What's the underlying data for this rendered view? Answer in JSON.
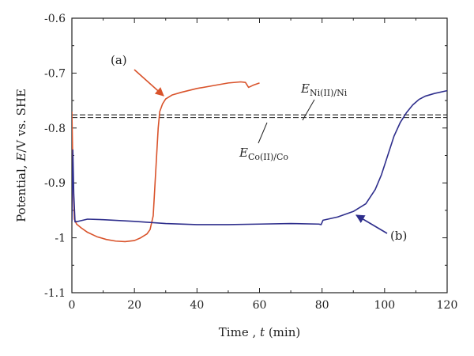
{
  "chart_data": {
    "type": "line",
    "xlabel": {
      "prefix": "Time , ",
      "var": "t",
      "suffix": " (min)"
    },
    "ylabel": {
      "prefix": "Potential, ",
      "var": "E",
      "suffix": "/V vs. SHE"
    },
    "xlim": [
      0,
      120
    ],
    "ylim": [
      -1.1,
      -0.6
    ],
    "x_ticks": [
      "0",
      "20",
      "40",
      "60",
      "80",
      "100",
      "120"
    ],
    "y_ticks": [
      "-0.6",
      "-0.7",
      "-0.8",
      "-0.9",
      "-1",
      "-1.1"
    ],
    "grid": false,
    "series": [
      {
        "name": "(a)",
        "color": "#d9532b",
        "points": [
          [
            0,
            -0.77
          ],
          [
            0.4,
            -0.9
          ],
          [
            0.8,
            -0.966
          ],
          [
            1.5,
            -0.975
          ],
          [
            3,
            -0.982
          ],
          [
            5,
            -0.99
          ],
          [
            8,
            -0.998
          ],
          [
            11,
            -1.003
          ],
          [
            14,
            -1.006
          ],
          [
            17,
            -1.007
          ],
          [
            20,
            -1.005
          ],
          [
            22,
            -1.0
          ],
          [
            24,
            -0.993
          ],
          [
            25,
            -0.985
          ],
          [
            26,
            -0.96
          ],
          [
            26.6,
            -0.9
          ],
          [
            27.1,
            -0.85
          ],
          [
            27.6,
            -0.8
          ],
          [
            28.1,
            -0.77
          ],
          [
            29,
            -0.756
          ],
          [
            30,
            -0.747
          ],
          [
            32,
            -0.74
          ],
          [
            35,
            -0.735
          ],
          [
            40,
            -0.728
          ],
          [
            45,
            -0.723
          ],
          [
            50,
            -0.718
          ],
          [
            54,
            -0.716
          ],
          [
            55.5,
            -0.717
          ],
          [
            56.5,
            -0.726
          ],
          [
            58,
            -0.722
          ],
          [
            60,
            -0.718
          ]
        ]
      },
      {
        "name": "(b)",
        "color": "#2e2e8c",
        "points": [
          [
            0,
            -0.97
          ],
          [
            0.3,
            -0.84
          ],
          [
            0.6,
            -0.92
          ],
          [
            1,
            -0.971
          ],
          [
            2,
            -0.97
          ],
          [
            5,
            -0.966
          ],
          [
            10,
            -0.967
          ],
          [
            20,
            -0.97
          ],
          [
            30,
            -0.974
          ],
          [
            40,
            -0.976
          ],
          [
            50,
            -0.976
          ],
          [
            60,
            -0.975
          ],
          [
            70,
            -0.974
          ],
          [
            79,
            -0.975
          ],
          [
            79.7,
            -0.976
          ],
          [
            80.3,
            -0.968
          ],
          [
            85,
            -0.962
          ],
          [
            90,
            -0.952
          ],
          [
            94,
            -0.938
          ],
          [
            97,
            -0.912
          ],
          [
            99,
            -0.885
          ],
          [
            101,
            -0.85
          ],
          [
            103,
            -0.815
          ],
          [
            105,
            -0.79
          ],
          [
            107,
            -0.772
          ],
          [
            109,
            -0.758
          ],
          [
            111,
            -0.748
          ],
          [
            113,
            -0.742
          ],
          [
            116,
            -0.737
          ],
          [
            120,
            -0.732
          ]
        ]
      }
    ],
    "reference_lines": [
      {
        "y": -0.776,
        "style": "dashed",
        "main": "E",
        "sub": "Ni(II)/Ni"
      },
      {
        "y": -0.781,
        "style": "dashed",
        "main": "E",
        "sub": "Co(II)/Co"
      }
    ],
    "labels": {
      "a": "(a)",
      "b": "(b)"
    }
  }
}
